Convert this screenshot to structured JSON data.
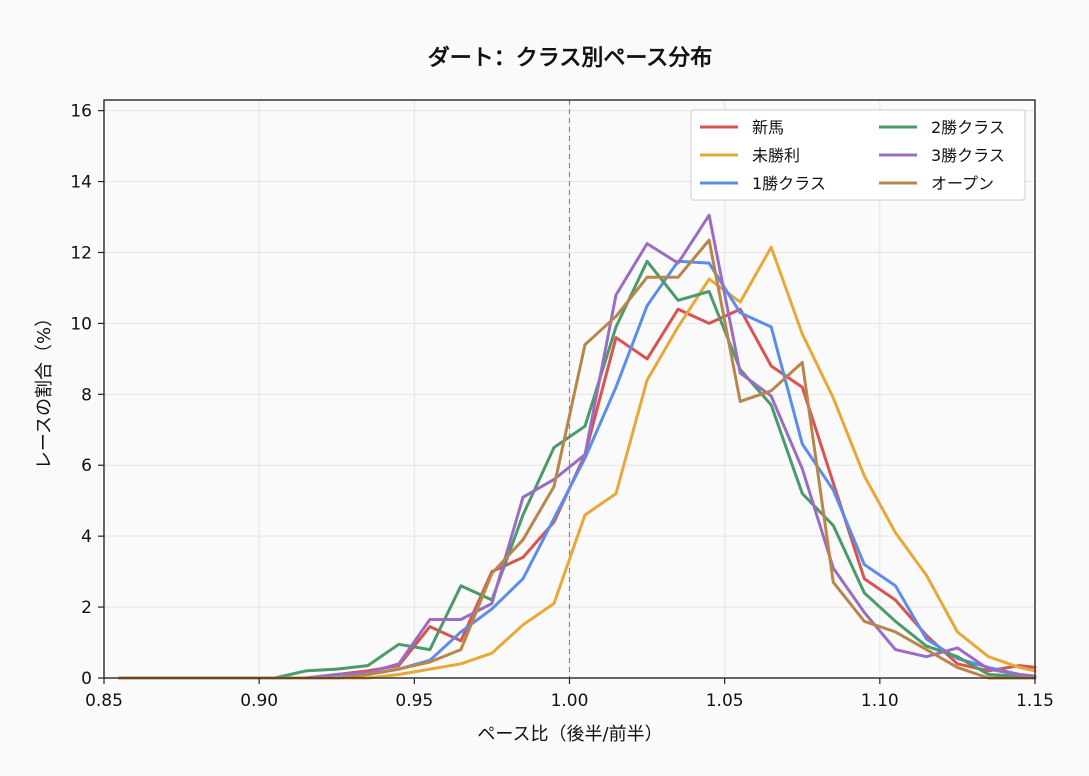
{
  "chart_data": {
    "type": "line",
    "title": "ダート：クラス別ペース分布",
    "xlabel": "ペース比（後半/前半）",
    "ylabel": "レースの割合（%）",
    "xlim": [
      0.85,
      1.15
    ],
    "ylim": [
      0,
      16.3
    ],
    "x_ticks": [
      "0.85",
      "0.90",
      "0.95",
      "1.00",
      "1.05",
      "1.10",
      "1.15"
    ],
    "y_ticks": [
      "0",
      "2",
      "4",
      "6",
      "8",
      "10",
      "12",
      "14",
      "16"
    ],
    "x_tick_values": [
      0.85,
      0.9,
      0.95,
      1.0,
      1.05,
      1.1,
      1.15
    ],
    "y_tick_values": [
      0,
      2,
      4,
      6,
      8,
      10,
      12,
      14,
      16
    ],
    "grid": true,
    "reference_line_x": 1.0,
    "legend_position": "top-right",
    "legend_columns": 2,
    "x": [
      0.855,
      0.865,
      0.875,
      0.885,
      0.895,
      0.905,
      0.915,
      0.925,
      0.935,
      0.945,
      0.955,
      0.965,
      0.975,
      0.985,
      0.995,
      1.005,
      1.015,
      1.025,
      1.035,
      1.045,
      1.055,
      1.065,
      1.075,
      1.085,
      1.095,
      1.105,
      1.115,
      1.125,
      1.135,
      1.145,
      1.15
    ],
    "series": [
      {
        "name": "新馬",
        "color": "#d9534f",
        "values": [
          0,
          0,
          0,
          0,
          0,
          0,
          0,
          0.1,
          0.2,
          0.35,
          1.45,
          1.05,
          3.0,
          3.4,
          4.4,
          6.3,
          9.6,
          9.0,
          10.4,
          10.0,
          10.4,
          8.8,
          8.2,
          5.5,
          2.8,
          2.2,
          1.2,
          0.4,
          0.2,
          0.35,
          0.3
        ]
      },
      {
        "name": "未勝利",
        "color": "#e8a838",
        "values": [
          0,
          0,
          0,
          0,
          0,
          0,
          0,
          0,
          0,
          0.1,
          0.25,
          0.4,
          0.7,
          1.5,
          2.1,
          4.6,
          5.2,
          8.4,
          9.9,
          11.25,
          10.6,
          12.15,
          9.7,
          7.9,
          5.7,
          4.1,
          2.9,
          1.3,
          0.6,
          0.3,
          0.2
        ]
      },
      {
        "name": "1勝クラス",
        "color": "#5b8def",
        "values": [
          0,
          0,
          0,
          0,
          0,
          0,
          0,
          0,
          0.1,
          0.25,
          0.5,
          1.3,
          1.95,
          2.8,
          4.5,
          6.2,
          8.2,
          10.5,
          11.75,
          11.7,
          10.3,
          9.9,
          6.6,
          5.3,
          3.2,
          2.6,
          1.1,
          0.55,
          0.3,
          0.1,
          0.05
        ]
      },
      {
        "name": "2勝クラス",
        "color": "#4a9a6a",
        "values": [
          0,
          0,
          0,
          0,
          0,
          0,
          0.2,
          0.25,
          0.35,
          0.95,
          0.8,
          2.6,
          2.2,
          4.6,
          6.5,
          7.1,
          9.9,
          11.75,
          10.65,
          10.9,
          8.7,
          7.7,
          5.2,
          4.3,
          2.4,
          1.6,
          0.9,
          0.6,
          0.1,
          0.05,
          0
        ]
      },
      {
        "name": "3勝クラス",
        "color": "#9b6cc4",
        "values": [
          0,
          0,
          0,
          0,
          0,
          0,
          0,
          0.1,
          0.15,
          0.4,
          1.65,
          1.65,
          2.1,
          5.1,
          5.6,
          6.3,
          10.8,
          12.25,
          11.7,
          13.05,
          8.6,
          7.95,
          5.9,
          3.1,
          1.85,
          0.8,
          0.6,
          0.85,
          0.25,
          0.1,
          0.05
        ]
      },
      {
        "name": "オープン",
        "color": "#b8864a",
        "values": [
          0,
          0,
          0,
          0,
          0,
          0,
          0,
          0,
          0.1,
          0.25,
          0.45,
          0.8,
          2.95,
          3.9,
          5.4,
          9.4,
          10.2,
          11.3,
          11.3,
          12.35,
          7.8,
          8.1,
          8.9,
          2.7,
          1.6,
          1.3,
          0.8,
          0.3,
          0,
          0,
          0
        ]
      }
    ]
  }
}
